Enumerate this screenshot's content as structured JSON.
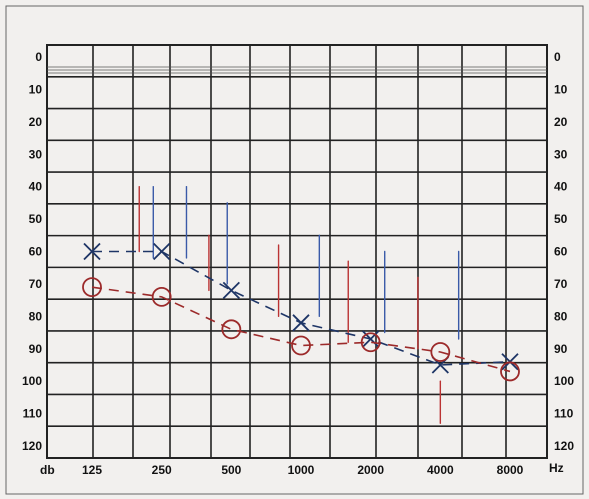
{
  "chart_data": {
    "type": "line",
    "title": "",
    "x_unit_label": "Hz",
    "y_unit_label": "db",
    "x_tick_labels": [
      "125",
      "250",
      "500",
      "1000",
      "2000",
      "4000",
      "8000"
    ],
    "y_tick_labels": [
      "0",
      "10",
      "20",
      "30",
      "40",
      "50",
      "60",
      "70",
      "80",
      "90",
      "100",
      "110",
      "120"
    ],
    "y_range": [
      0,
      120
    ],
    "y_inverted": true,
    "x_scale": "log2 (octaves)",
    "grid": true,
    "series": [
      {
        "marker": "x",
        "color": "#1e3566",
        "x": [
          125,
          250,
          500,
          1000,
          2000,
          4000,
          8000
        ],
        "y": [
          60,
          60,
          72,
          82,
          87,
          95,
          94
        ]
      },
      {
        "marker": "o",
        "color": "#9c2a2a",
        "x": [
          125,
          250,
          500,
          1000,
          2000,
          4000,
          8000
        ],
        "y": [
          71,
          74,
          84,
          89,
          88,
          91,
          97
        ]
      }
    ],
    "red_vertical_strokes": [
      {
        "x": 200,
        "y": [
          40,
          60
        ]
      },
      {
        "x": 400,
        "y": [
          55,
          72
        ]
      },
      {
        "x": 800,
        "y": [
          58,
          80
        ]
      },
      {
        "x": 1600,
        "y": [
          63,
          88
        ]
      },
      {
        "x": 3200,
        "y": [
          68,
          90
        ]
      },
      {
        "x": 4000,
        "y": [
          100,
          113
        ]
      }
    ],
    "blue_vertical_strokes": [
      {
        "x": 230,
        "y": [
          40,
          62
        ]
      },
      {
        "x": 320,
        "y": [
          40,
          62
        ]
      },
      {
        "x": 480,
        "y": [
          45,
          70
        ]
      },
      {
        "x": 1200,
        "y": [
          55,
          80
        ]
      },
      {
        "x": 2300,
        "y": [
          60,
          85
        ]
      },
      {
        "x": 4800,
        "y": [
          60,
          87
        ]
      }
    ]
  }
}
